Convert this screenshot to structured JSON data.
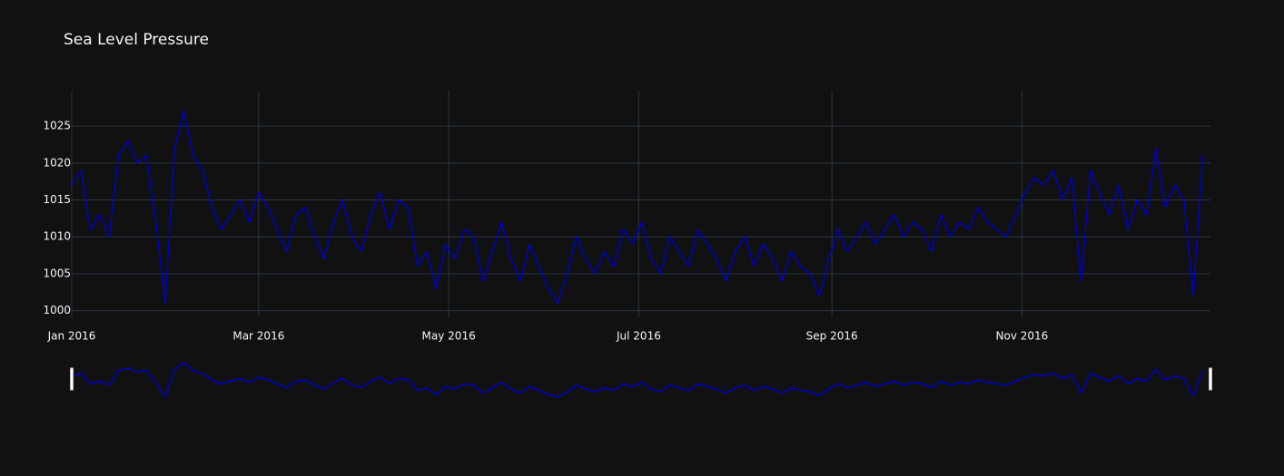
{
  "chart_data": {
    "type": "line",
    "title": "Sea Level Pressure",
    "x": [
      0,
      3,
      6,
      9,
      12,
      15,
      18,
      21,
      24,
      27,
      30,
      33,
      36,
      39,
      42,
      45,
      48,
      51,
      54,
      57,
      60,
      63,
      66,
      69,
      72,
      75,
      78,
      81,
      84,
      87,
      90,
      93,
      96,
      99,
      102,
      105,
      108,
      111,
      114,
      117,
      120,
      123,
      126,
      129,
      132,
      135,
      138,
      141,
      144,
      147,
      150,
      153,
      156,
      159,
      162,
      165,
      168,
      171,
      174,
      177,
      180,
      183,
      186,
      189,
      192,
      195,
      198,
      201,
      204,
      207,
      210,
      213,
      216,
      219,
      222,
      225,
      228,
      231,
      234,
      237,
      240,
      243,
      246,
      249,
      252,
      255,
      258,
      261,
      264,
      267,
      270,
      273,
      276,
      279,
      282,
      285,
      288,
      291,
      294,
      297,
      300,
      303,
      306,
      309,
      312,
      315,
      318,
      321,
      324,
      327,
      330,
      333,
      336,
      339,
      342,
      345,
      348,
      351,
      354,
      357,
      360,
      363
    ],
    "series": [
      {
        "name": "Sea Level Pressure",
        "color": "#0000cd",
        "values": [
          1017,
          1019,
          1011,
          1013,
          1010,
          1021,
          1023,
          1020,
          1021,
          1012,
          1001,
          1022,
          1027,
          1021,
          1019,
          1014,
          1011,
          1013,
          1015,
          1012,
          1016,
          1014,
          1011,
          1008,
          1013,
          1014,
          1010,
          1007,
          1012,
          1015,
          1010,
          1008,
          1013,
          1016,
          1011,
          1015,
          1014,
          1006,
          1008,
          1003,
          1009,
          1007,
          1011,
          1010,
          1004,
          1008,
          1012,
          1007,
          1004,
          1009,
          1006,
          1003,
          1001,
          1005,
          1010,
          1007,
          1005,
          1008,
          1006,
          1011,
          1009,
          1012,
          1007,
          1005,
          1010,
          1008,
          1006,
          1011,
          1009,
          1007,
          1004,
          1008,
          1010,
          1006,
          1009,
          1007,
          1004,
          1008,
          1006,
          1005,
          1002,
          1007,
          1011,
          1008,
          1010,
          1012,
          1009,
          1011,
          1013,
          1010,
          1012,
          1011,
          1008,
          1013,
          1010,
          1012,
          1011,
          1014,
          1012,
          1011,
          1010,
          1013,
          1016,
          1018,
          1017,
          1019,
          1015,
          1018,
          1004,
          1019,
          1016,
          1013,
          1017,
          1011,
          1015,
          1013,
          1022,
          1014,
          1017,
          1015,
          1002,
          1021
        ]
      }
    ],
    "xlim": [
      0,
      365.5
    ],
    "xticks": [
      {
        "value": 0,
        "label": "Jan 2016"
      },
      {
        "value": 60,
        "label": "Mar 2016"
      },
      {
        "value": 121,
        "label": "May 2016"
      },
      {
        "value": 182,
        "label": "Jul 2016"
      },
      {
        "value": 244,
        "label": "Sep 2016"
      },
      {
        "value": 305,
        "label": "Nov 2016"
      }
    ],
    "ylim": [
      999.1,
      1029.8
    ],
    "yticks": [
      1000,
      1005,
      1010,
      1015,
      1020,
      1025
    ],
    "grid": true,
    "rangeslider": true
  }
}
